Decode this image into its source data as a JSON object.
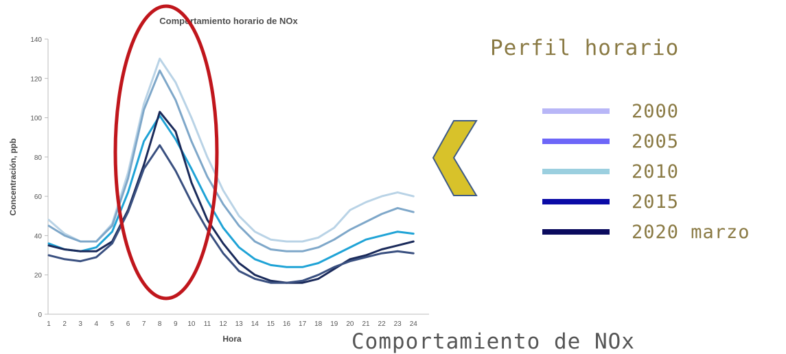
{
  "chart_data": {
    "type": "line",
    "title": "Comportamiento horario de NOx",
    "xlabel": "Hora",
    "ylabel": "Concentración, ppb",
    "x": [
      1,
      2,
      3,
      4,
      5,
      6,
      7,
      8,
      9,
      10,
      11,
      12,
      13,
      14,
      15,
      16,
      17,
      18,
      19,
      20,
      21,
      22,
      23,
      24
    ],
    "xticks": [
      "1",
      "2",
      "3",
      "4",
      "5",
      "6",
      "7",
      "8",
      "9",
      "10",
      "11",
      "12",
      "13",
      "14",
      "15",
      "16",
      "17",
      "18",
      "19",
      "20",
      "21",
      "22",
      "23",
      "24"
    ],
    "ylim": [
      0,
      140
    ],
    "yticks": [
      "0",
      "20",
      "40",
      "60",
      "80",
      "100",
      "120",
      "140"
    ],
    "grid": false,
    "series": [
      {
        "color": "#b9d3e6",
        "values": [
          48,
          41,
          37,
          37,
          46,
          72,
          107,
          130,
          118,
          100,
          80,
          63,
          50,
          42,
          38,
          37,
          37,
          39,
          44,
          53,
          57,
          60,
          62,
          60
        ]
      },
      {
        "color": "#7ea7c9",
        "values": [
          45,
          40,
          37,
          37,
          45,
          69,
          104,
          124,
          109,
          88,
          70,
          56,
          45,
          37,
          33,
          32,
          32,
          34,
          38,
          43,
          47,
          51,
          54,
          52
        ]
      },
      {
        "color": "#1fa3d6",
        "values": [
          36,
          33,
          32,
          34,
          42,
          62,
          88,
          101,
          89,
          74,
          58,
          44,
          34,
          28,
          25,
          24,
          24,
          26,
          30,
          34,
          38,
          40,
          42,
          41
        ]
      },
      {
        "color": "#1a2a5a",
        "values": [
          35,
          33,
          32,
          32,
          37,
          53,
          76,
          103,
          93,
          67,
          48,
          36,
          26,
          20,
          17,
          16,
          16,
          18,
          23,
          28,
          30,
          33,
          35,
          37
        ]
      },
      {
        "color": "#3a5080",
        "values": [
          30,
          28,
          27,
          29,
          36,
          52,
          74,
          86,
          73,
          57,
          43,
          31,
          22,
          18,
          16,
          16,
          17,
          20,
          24,
          27,
          29,
          31,
          32,
          31
        ]
      }
    ]
  },
  "legend": {
    "heading": "Perfil horario",
    "items": [
      {
        "label": "2000",
        "color": "#b8b6f7"
      },
      {
        "label": "2005",
        "color": "#6d66f8"
      },
      {
        "label": "2010",
        "color": "#9bcfdf"
      },
      {
        "label": "2015",
        "color": "#0a0aa6"
      },
      {
        "label": "2020 marzo",
        "color": "#0b0b5e"
      }
    ]
  },
  "caption": "Comportamiento de NOx",
  "annotation": {
    "highlight_color": "#c0161c",
    "highlight_hour": 8,
    "chevron_fill": "#d8c22a",
    "chevron_stroke": "#3e5a86"
  }
}
